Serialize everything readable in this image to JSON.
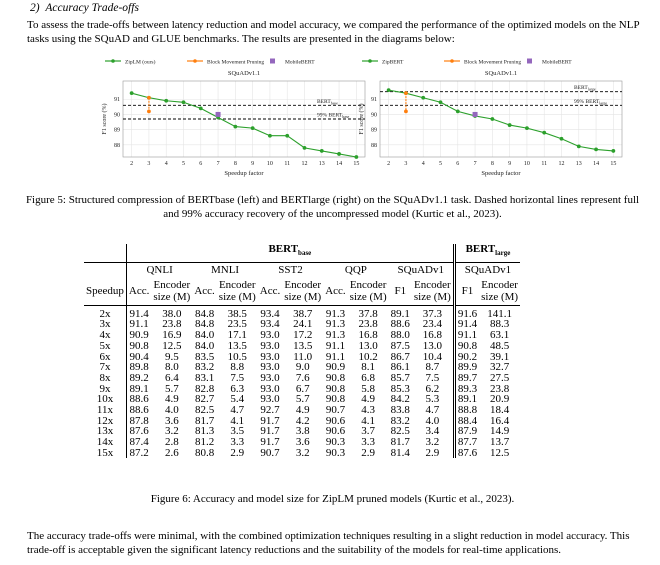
{
  "section": {
    "number": "2)",
    "title": "Accuracy Trade-offs",
    "intro": "To assess the trade-offs between latency reduction and model accuracy, we compared the performance of the optimized models on the NLP tasks using the SQuAD and GLUE benchmarks. The results are presented in the diagrams below:"
  },
  "chart_data": [
    {
      "type": "line",
      "title": "SQuADv1.1",
      "xlabel": "Speedup factor",
      "ylabel": "F1 score (%)",
      "x_ticks": [
        2,
        3,
        4,
        5,
        6,
        7,
        8,
        9,
        10,
        11,
        12,
        13,
        14,
        15
      ],
      "y_ticks": [
        88,
        89,
        90,
        91
      ],
      "xlim": [
        1.5,
        15.5
      ],
      "ylim": [
        87.2,
        92.2
      ],
      "legend": [
        "ZipLM (ours)",
        "Block Movement Pruning",
        "MobileBERT"
      ],
      "legend_position": "top",
      "series": [
        {
          "name": "ZipLM (ours)",
          "color": "#2ca02c",
          "x": [
            2,
            3,
            4,
            5,
            6,
            7,
            8,
            9,
            10,
            11,
            12,
            13,
            14,
            15
          ],
          "y": [
            91.4,
            91.1,
            90.9,
            90.8,
            90.4,
            89.8,
            89.2,
            89.1,
            88.6,
            88.6,
            87.8,
            87.6,
            87.4,
            87.2
          ]
        },
        {
          "name": "Block Movement Pruning",
          "color": "#ff7f0e",
          "x": [
            3,
            3
          ],
          "y": [
            91.1,
            90.2
          ]
        },
        {
          "name": "MobileBERT",
          "color": "#9467bd",
          "x": [
            7
          ],
          "y": [
            90.0
          ]
        }
      ],
      "hlines": [
        {
          "label": "BERT",
          "sub": "base",
          "y": 90.6
        },
        {
          "label": "99% BERT",
          "sub": "base",
          "y": 89.7
        }
      ]
    },
    {
      "type": "line",
      "title": "SQuADv1.1",
      "xlabel": "Speedup factor",
      "ylabel": "F1 score (%)",
      "x_ticks": [
        2,
        3,
        4,
        5,
        6,
        7,
        8,
        9,
        10,
        11,
        12,
        13,
        14,
        15
      ],
      "y_ticks": [
        88,
        89,
        90,
        91
      ],
      "xlim": [
        1.5,
        15.5
      ],
      "ylim": [
        87.2,
        92.2
      ],
      "legend": [
        "ZipBERT",
        "Block Movement Pruning",
        "MobileBERT"
      ],
      "legend_position": "top",
      "series": [
        {
          "name": "ZipBERT",
          "color": "#2ca02c",
          "x": [
            2,
            3,
            4,
            5,
            6,
            7,
            8,
            9,
            10,
            11,
            12,
            13,
            14,
            15
          ],
          "y": [
            91.6,
            91.4,
            91.1,
            90.8,
            90.2,
            89.9,
            89.7,
            89.3,
            89.1,
            88.8,
            88.4,
            87.9,
            87.7,
            87.6
          ]
        },
        {
          "name": "Block Movement Pruning",
          "color": "#ff7f0e",
          "x": [
            3,
            3
          ],
          "y": [
            91.4,
            90.2
          ]
        },
        {
          "name": "MobileBERT",
          "color": "#9467bd",
          "x": [
            7
          ],
          "y": [
            90.0
          ]
        }
      ],
      "hlines": [
        {
          "label": "BERT",
          "sub": "large",
          "y": 91.5
        },
        {
          "label": "99% BERT",
          "sub": "large",
          "y": 90.6
        }
      ]
    }
  ],
  "figure5_caption": "Figure 5: Structured compression of BERTbase (left) and BERTlarge (right) on the SQuADv1.1 task. Dashed horizontal lines represent full and 99% accuracy recovery of the uncompressed model (Kurtic et al., 2023).",
  "table": {
    "group_base": {
      "label": "BERT",
      "sub": "base"
    },
    "group_large": {
      "label": "BERT",
      "sub": "large"
    },
    "tasks": [
      "QNLI",
      "MNLI",
      "SST2",
      "QQP",
      "SQuADv1",
      "SQuADv1"
    ],
    "speedup_label": "Speedup",
    "metric_labels": [
      "Acc.",
      "Acc.",
      "Acc.",
      "Acc.",
      "F1",
      "F1"
    ],
    "size_label_1": "Encoder",
    "size_label_2": "size (M)",
    "rows": [
      [
        "2x",
        "91.4",
        "38.0",
        "84.8",
        "38.5",
        "93.4",
        "38.7",
        "91.3",
        "37.8",
        "89.1",
        "37.3",
        "91.6",
        "141.1"
      ],
      [
        "3x",
        "91.1",
        "23.8",
        "84.8",
        "23.5",
        "93.4",
        "24.1",
        "91.3",
        "23.8",
        "88.6",
        "23.4",
        "91.4",
        "88.3"
      ],
      [
        "4x",
        "90.9",
        "16.9",
        "84.0",
        "17.1",
        "93.0",
        "17.2",
        "91.3",
        "16.8",
        "88.0",
        "16.8",
        "91.1",
        "63.1"
      ],
      [
        "5x",
        "90.8",
        "12.5",
        "84.0",
        "13.5",
        "93.0",
        "13.5",
        "91.1",
        "13.0",
        "87.5",
        "13.0",
        "90.8",
        "48.5"
      ],
      [
        "6x",
        "90.4",
        "9.5",
        "83.5",
        "10.5",
        "93.0",
        "11.0",
        "91.1",
        "10.2",
        "86.7",
        "10.4",
        "90.2",
        "39.1"
      ],
      [
        "7x",
        "89.8",
        "8.0",
        "83.2",
        "8.8",
        "93.0",
        "9.0",
        "90.9",
        "8.1",
        "86.1",
        "8.7",
        "89.9",
        "32.7"
      ],
      [
        "8x",
        "89.2",
        "6.4",
        "83.1",
        "7.5",
        "93.0",
        "7.6",
        "90.8",
        "6.8",
        "85.7",
        "7.5",
        "89.7",
        "27.5"
      ],
      [
        "9x",
        "89.1",
        "5.7",
        "82.8",
        "6.3",
        "93.0",
        "6.7",
        "90.8",
        "5.8",
        "85.3",
        "6.2",
        "89.3",
        "23.8"
      ],
      [
        "10x",
        "88.6",
        "4.9",
        "82.7",
        "5.4",
        "93.0",
        "5.7",
        "90.8",
        "4.9",
        "84.2",
        "5.3",
        "89.1",
        "20.9"
      ],
      [
        "11x",
        "88.6",
        "4.0",
        "82.5",
        "4.7",
        "92.7",
        "4.9",
        "90.7",
        "4.3",
        "83.8",
        "4.7",
        "88.8",
        "18.4"
      ],
      [
        "12x",
        "87.8",
        "3.6",
        "81.7",
        "4.1",
        "91.7",
        "4.2",
        "90.6",
        "4.1",
        "83.2",
        "4.0",
        "88.4",
        "16.4"
      ],
      [
        "13x",
        "87.6",
        "3.2",
        "81.3",
        "3.5",
        "91.7",
        "3.8",
        "90.6",
        "3.7",
        "82.5",
        "3.4",
        "87.9",
        "14.9"
      ],
      [
        "14x",
        "87.4",
        "2.8",
        "81.2",
        "3.3",
        "91.7",
        "3.6",
        "90.3",
        "3.3",
        "81.7",
        "3.2",
        "87.7",
        "13.7"
      ],
      [
        "15x",
        "87.2",
        "2.6",
        "80.8",
        "2.9",
        "90.7",
        "3.2",
        "90.3",
        "2.9",
        "81.4",
        "2.9",
        "87.6",
        "12.5"
      ]
    ]
  },
  "figure6_caption": "Figure 6: Accuracy and model size for ZipLM pruned models (Kurtic et al., 2023).",
  "outro": "The accuracy trade-offs were minimal, with the combined optimization techniques resulting in a slight reduction in model accuracy. This trade-off is acceptable given the significant latency reductions and the suitability of the models for real-time applications."
}
